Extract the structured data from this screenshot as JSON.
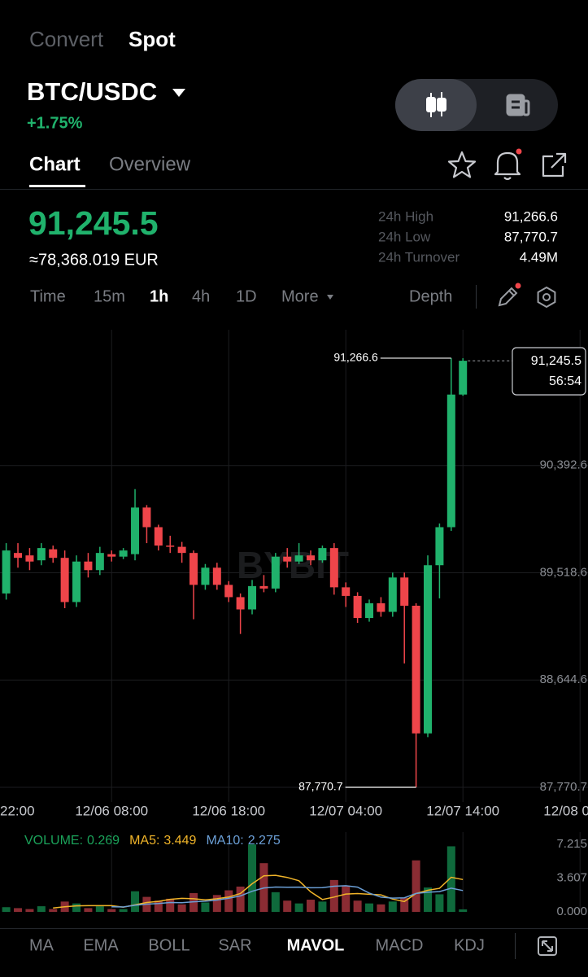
{
  "header": {
    "tabs": [
      "Convert",
      "Spot"
    ],
    "pair": "BTC/USDC",
    "change": "+1.75%",
    "view_tabs": [
      "Chart",
      "Overview"
    ]
  },
  "ticker": {
    "price": "91,245.5",
    "converted": "≈78,368.019 EUR",
    "stats": [
      {
        "label": "24h High",
        "value": "91,266.6"
      },
      {
        "label": "24h Low",
        "value": "87,770.7"
      },
      {
        "label": "24h Turnover",
        "value": "4.49M"
      }
    ]
  },
  "toolbar": {
    "intervals": [
      "Time",
      "15m",
      "1h",
      "4h",
      "1D",
      "More"
    ],
    "depth": "Depth"
  },
  "chart_data": [
    {
      "type": "candlestick",
      "watermark": "BYBIT",
      "countdown": "56:54",
      "up_color": "#20b26c",
      "down_color": "#ef454a",
      "open": [
        89350,
        89680,
        89660,
        89620,
        89710,
        89640,
        89280,
        89610,
        89540,
        89670,
        89650,
        89670,
        90050,
        89890,
        89740,
        89730,
        89680,
        89420,
        89560,
        89420,
        89320,
        89220,
        89410,
        89390,
        89650,
        89610,
        89660,
        89620,
        89720,
        89400,
        89330,
        89150,
        89270,
        89200,
        89480,
        89250,
        88210,
        89580,
        89890,
        90970
      ],
      "high": [
        89760,
        89760,
        89720,
        89760,
        89740,
        89700,
        89660,
        89680,
        89730,
        89700,
        89720,
        90200,
        90070,
        89910,
        89820,
        89770,
        89700,
        89590,
        89600,
        89450,
        89350,
        89460,
        89500,
        89680,
        89720,
        89760,
        89700,
        89740,
        89760,
        89440,
        89360,
        89300,
        89320,
        89520,
        89520,
        89270,
        89660,
        89920,
        91266.6,
        91266.6
      ],
      "low": [
        89300,
        89560,
        89540,
        89580,
        89600,
        89230,
        89240,
        89480,
        89500,
        89610,
        89630,
        89620,
        89760,
        89700,
        89680,
        89600,
        89140,
        89380,
        89380,
        89280,
        89020,
        89180,
        89360,
        89360,
        89560,
        89590,
        89580,
        89600,
        89340,
        89240,
        89110,
        89120,
        89160,
        89160,
        88780,
        87770.7,
        88180,
        89310,
        89860,
        90960
      ],
      "close": [
        89700,
        89640,
        89610,
        89720,
        89640,
        89280,
        89610,
        89540,
        89680,
        89650,
        89700,
        90050,
        89890,
        89740,
        89730,
        89680,
        89420,
        89560,
        89420,
        89320,
        89220,
        89410,
        89390,
        89650,
        89610,
        89660,
        89620,
        89720,
        89400,
        89330,
        89150,
        89270,
        89200,
        89480,
        89250,
        88210,
        89580,
        89890,
        90970,
        91245.5
      ],
      "xlim": [
        -0.53,
        49.68
      ],
      "xticks": [
        {
          "value": -1,
          "label": "22:00"
        },
        {
          "value": 9,
          "label": "12/06 08:00"
        },
        {
          "value": 19,
          "label": "12/06 18:00"
        },
        {
          "value": 29,
          "label": "12/07 04:00"
        },
        {
          "value": 39,
          "label": "12/07 14:00"
        },
        {
          "value": 49,
          "label": "12/08 00:00"
        }
      ],
      "ylim": [
        87651.5,
        91498.3
      ],
      "yticks": [
        {
          "value": 87770.7,
          "label": "87,770.7"
        },
        {
          "value": 88644.6,
          "label": "88,644.6"
        },
        {
          "value": 89518.6,
          "label": "89,518.6"
        },
        {
          "value": 90392.6,
          "label": "90,392.6"
        }
      ],
      "grid": true
    },
    {
      "type": "bar",
      "series": [
        {
          "name": "VOLUME:",
          "color": "#1ba35a",
          "up_color": "#0f6a3c",
          "down_color": "#8a2c33",
          "values": [
            0.5,
            0.4,
            0.3,
            0.6,
            0.3,
            1.1,
            0.9,
            0.4,
            0.6,
            0.3,
            0.3,
            2.2,
            1.6,
            1.2,
            1.4,
            0.8,
            2.0,
            1.0,
            1.8,
            2.3,
            2.7,
            7.2,
            5.2,
            2.1,
            1.2,
            0.9,
            1.3,
            1.1,
            3.4,
            2.8,
            1.2,
            0.9,
            0.8,
            1.105,
            1.5,
            5.5,
            2.6,
            1.876,
            7.0,
            0.269
          ]
        },
        {
          "name": "MA5:",
          "color": "#f0b429",
          "values": [
            null,
            null,
            null,
            null,
            0.42,
            0.54,
            0.64,
            0.66,
            0.66,
            0.66,
            0.5,
            0.76,
            1.0,
            1.12,
            1.34,
            1.44,
            1.4,
            1.28,
            1.4,
            1.58,
            1.96,
            3.0,
            3.84,
            3.9,
            3.68,
            3.32,
            2.14,
            1.32,
            1.58,
            1.9,
            1.96,
            1.88,
            1.82,
            1.361,
            1.101,
            1.961,
            2.301,
            2.516,
            3.695,
            3.449
          ]
        },
        {
          "name": "MA10:",
          "color": "#6b9fd6",
          "values": [
            null,
            null,
            null,
            null,
            null,
            null,
            null,
            null,
            null,
            0.54,
            0.52,
            0.7,
            0.83,
            0.89,
            1.0,
            0.97,
            1.08,
            1.14,
            1.26,
            1.46,
            1.7,
            2.2,
            2.56,
            2.65,
            2.63,
            2.64,
            2.57,
            2.58,
            2.74,
            2.79,
            2.64,
            2.01,
            1.57,
            1.471,
            1.501,
            1.961,
            2.091,
            2.168,
            2.528,
            2.275
          ]
        }
      ],
      "ylim": [
        0,
        7.215
      ],
      "yticks": [
        {
          "value": 0,
          "label": "0.000"
        },
        3.607,
        7.215
      ]
    }
  ],
  "indicator_tabs": [
    "MA",
    "EMA",
    "BOLL",
    "SAR",
    "MAVOL",
    "MACD",
    "KDJ"
  ]
}
